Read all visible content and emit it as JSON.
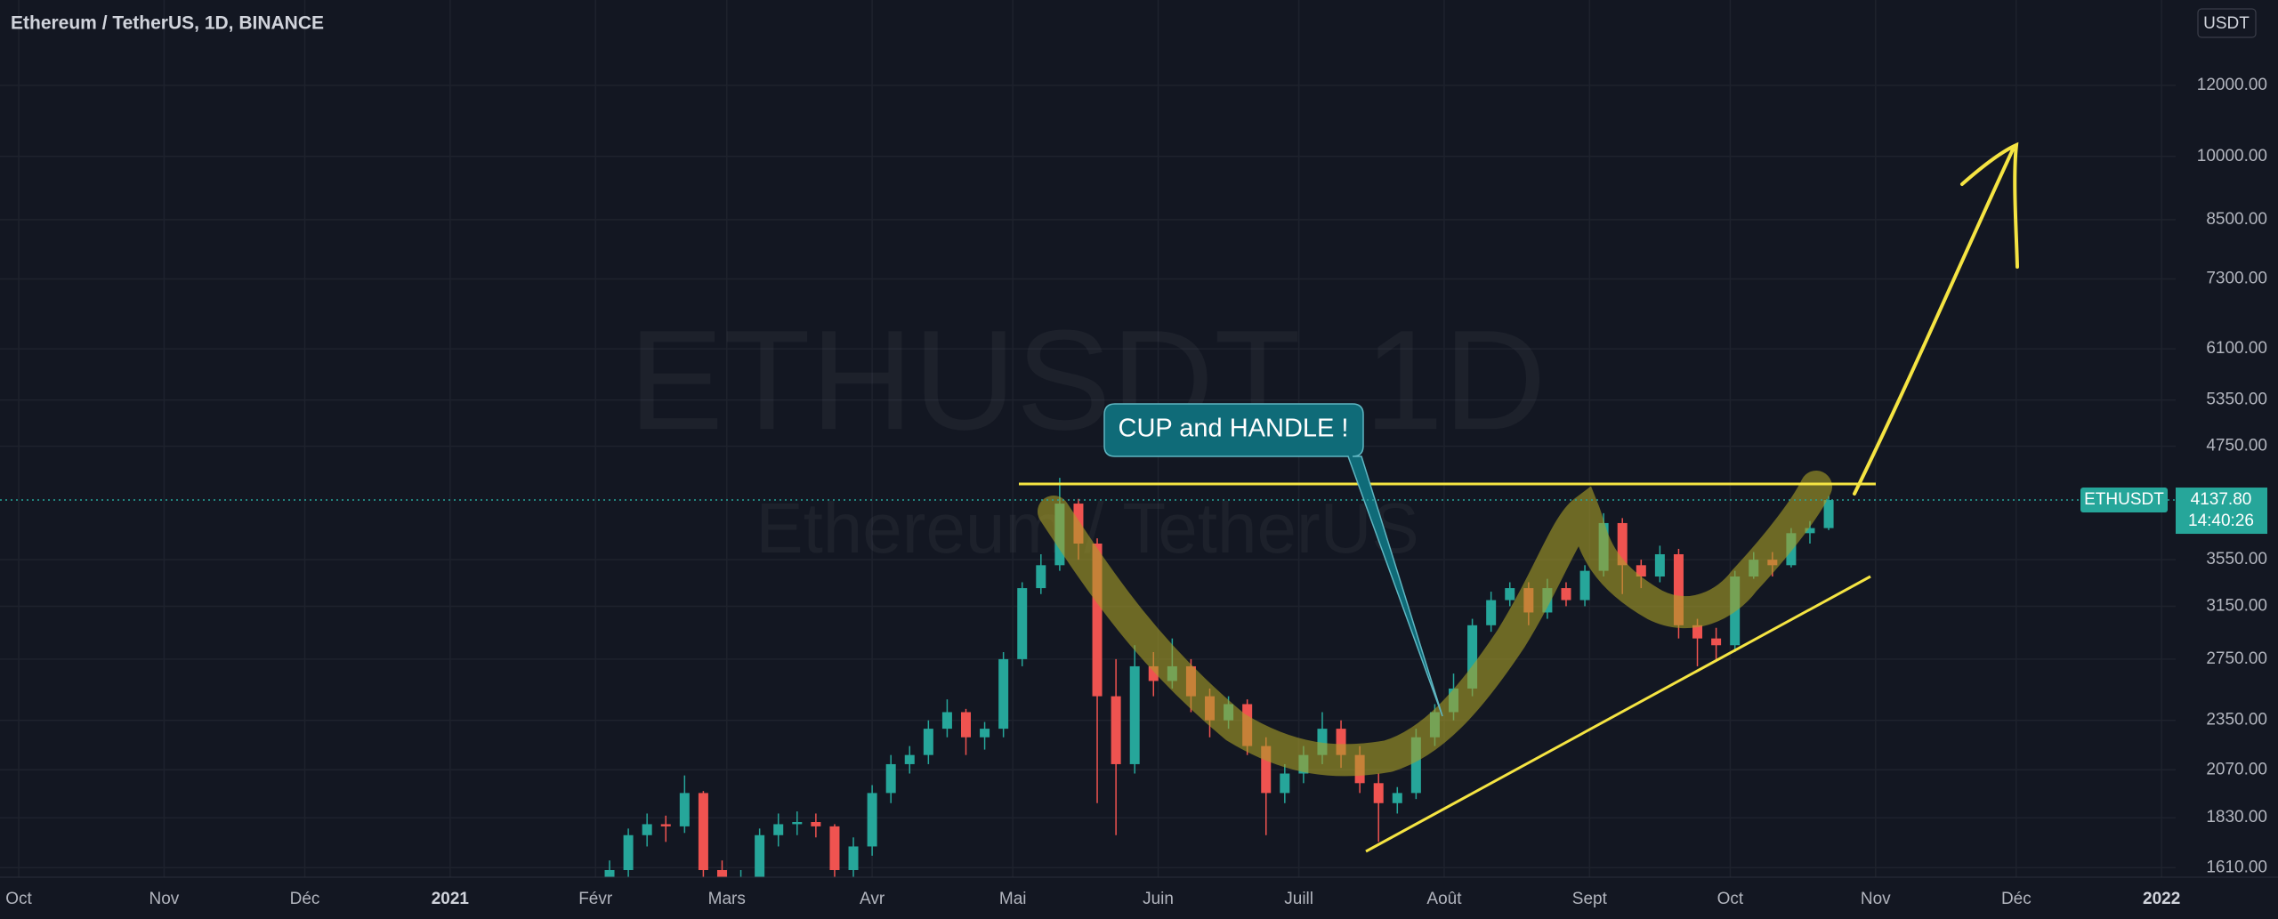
{
  "chart_data": {
    "type": "candlestick",
    "title": "Ethereum / TetherUS, 1D, BINANCE",
    "watermark": "ETHUSDT, 1D",
    "watermark_subtitle": "Ethereum / TetherUS",
    "annotation": "CUP and HANDLE !",
    "currency_button": "USDT",
    "symbol_tag": "ETHUSDT",
    "last_price": {
      "value": 4137.8,
      "label": "4137.80"
    },
    "countdown": "14:40:26",
    "log_scale": true,
    "grid": true,
    "up_color": "#26a69a",
    "down_color": "#ef5350",
    "x": [
      "2021-02-04",
      "2021-02-08",
      "2021-02-12",
      "2021-02-16",
      "2021-02-20",
      "2021-02-24",
      "2021-02-28",
      "2021-03-04",
      "2021-03-08",
      "2021-03-12",
      "2021-03-16",
      "2021-03-20",
      "2021-03-24",
      "2021-03-28",
      "2021-04-01",
      "2021-04-05",
      "2021-04-09",
      "2021-04-13",
      "2021-04-17",
      "2021-04-21",
      "2021-04-25",
      "2021-04-29",
      "2021-05-03",
      "2021-05-07",
      "2021-05-11",
      "2021-05-15",
      "2021-05-19",
      "2021-05-23",
      "2021-05-27",
      "2021-05-31",
      "2021-06-04",
      "2021-06-08",
      "2021-06-12",
      "2021-06-16",
      "2021-06-20",
      "2021-06-24",
      "2021-06-28",
      "2021-07-02",
      "2021-07-06",
      "2021-07-10",
      "2021-07-14",
      "2021-07-18",
      "2021-07-22",
      "2021-07-26",
      "2021-07-30",
      "2021-08-03",
      "2021-08-07",
      "2021-08-11",
      "2021-08-15",
      "2021-08-19",
      "2021-08-23",
      "2021-08-27",
      "2021-08-31",
      "2021-09-04",
      "2021-09-08",
      "2021-09-12",
      "2021-09-16",
      "2021-09-20",
      "2021-09-24",
      "2021-09-28",
      "2021-10-02",
      "2021-10-06",
      "2021-10-10",
      "2021-10-14",
      "2021-10-18",
      "2021-10-22"
    ],
    "open": [
      1550,
      1600,
      1750,
      1800,
      1790,
      1950,
      1600,
      1450,
      1550,
      1750,
      1800,
      1810,
      1790,
      1600,
      1700,
      1950,
      2100,
      2150,
      2300,
      2400,
      2250,
      2300,
      2750,
      3300,
      3500,
      4100,
      3700,
      2500,
      2100,
      2700,
      2600,
      2700,
      2500,
      2350,
      2450,
      2200,
      1950,
      2050,
      2150,
      2300,
      2150,
      2000,
      1900,
      1950,
      2250,
      2400,
      2550,
      3000,
      3200,
      3300,
      3100,
      3300,
      3200,
      3450,
      3900,
      3500,
      3400,
      3600,
      3000,
      2900,
      2850,
      3400,
      3550,
      3500,
      3800,
      3850
    ],
    "high": [
      1640,
      1780,
      1850,
      1840,
      2040,
      1960,
      1640,
      1600,
      1780,
      1850,
      1860,
      1850,
      1800,
      1740,
      1990,
      2150,
      2200,
      2350,
      2480,
      2420,
      2340,
      2800,
      3350,
      3600,
      4380,
      4150,
      3750,
      2750,
      2850,
      2800,
      2900,
      2750,
      2550,
      2500,
      2480,
      2250,
      2100,
      2200,
      2400,
      2350,
      2200,
      2050,
      1980,
      2300,
      2450,
      2650,
      3050,
      3270,
      3350,
      3350,
      3380,
      3350,
      3500,
      4000,
      3950,
      3550,
      3680,
      3650,
      3050,
      2980,
      3450,
      3620,
      3620,
      3850,
      3920,
      4180
    ],
    "low": [
      1500,
      1560,
      1700,
      1720,
      1760,
      1550,
      1380,
      1420,
      1500,
      1700,
      1750,
      1740,
      1540,
      1560,
      1660,
      1900,
      2050,
      2100,
      2250,
      2150,
      2180,
      2250,
      2700,
      3250,
      3450,
      3550,
      1900,
      1750,
      2050,
      2500,
      2550,
      2400,
      2250,
      2300,
      2150,
      1750,
      1900,
      2000,
      2100,
      2080,
      1950,
      1720,
      1850,
      1920,
      2200,
      2350,
      2500,
      2950,
      3150,
      3000,
      3050,
      3150,
      3150,
      3400,
      3250,
      3300,
      3350,
      2900,
      2700,
      2750,
      2800,
      3380,
      3400,
      3480,
      3700,
      3830
    ],
    "close": [
      1600,
      1750,
      1800,
      1790,
      1950,
      1600,
      1450,
      1550,
      1750,
      1800,
      1810,
      1790,
      1600,
      1700,
      1950,
      2100,
      2150,
      2300,
      2400,
      2250,
      2300,
      2750,
      3300,
      3500,
      4100,
      3700,
      2500,
      2100,
      2700,
      2600,
      2700,
      2500,
      2350,
      2450,
      2200,
      1950,
      2050,
      2150,
      2300,
      2150,
      2000,
      1900,
      1950,
      2250,
      2400,
      2550,
      3000,
      3200,
      3300,
      3100,
      3300,
      3200,
      3450,
      3900,
      3500,
      3400,
      3600,
      3000,
      2900,
      2850,
      3400,
      3550,
      3500,
      3800,
      3850,
      4137.8
    ],
    "xlim": [
      "2020-09-27",
      "2022-01-04"
    ],
    "xticks": [
      {
        "value": "2020-10-01",
        "label": "Oct"
      },
      {
        "value": "2020-11-01",
        "label": "Nov"
      },
      {
        "value": "2020-12-01",
        "label": "Déc"
      },
      {
        "value": "2021-01-01",
        "label": "2021"
      },
      {
        "value": "2021-02-01",
        "label": "Févr"
      },
      {
        "value": "2021-03-01",
        "label": "Mars"
      },
      {
        "value": "2021-04-01",
        "label": "Avr"
      },
      {
        "value": "2021-05-01",
        "label": "Mai"
      },
      {
        "value": "2021-06-01",
        "label": "Juin"
      },
      {
        "value": "2021-07-01",
        "label": "Juill"
      },
      {
        "value": "2021-08-01",
        "label": "Août"
      },
      {
        "value": "2021-09-01",
        "label": "Sept"
      },
      {
        "value": "2021-10-01",
        "label": "Oct"
      },
      {
        "value": "2021-11-01",
        "label": "Nov"
      },
      {
        "value": "2021-12-01",
        "label": "Déc"
      },
      {
        "value": "2022-01-01",
        "label": "2022"
      }
    ],
    "ylim": [
      1571,
      14940
    ],
    "yticks": [
      {
        "value": 1610,
        "label": "1610.00"
      },
      {
        "value": 1830,
        "label": "1830.00"
      },
      {
        "value": 2070,
        "label": "2070.00"
      },
      {
        "value": 2350,
        "label": "2350.00"
      },
      {
        "value": 2750,
        "label": "2750.00"
      },
      {
        "value": 3150,
        "label": "3150.00"
      },
      {
        "value": 3550,
        "label": "3550.00"
      },
      {
        "value": 4750,
        "label": "4750.00"
      },
      {
        "value": 5350,
        "label": "5350.00"
      },
      {
        "value": 6100,
        "label": "6100.00"
      },
      {
        "value": 7300,
        "label": "7300.00"
      },
      {
        "value": 8500,
        "label": "8500.00"
      },
      {
        "value": 10000,
        "label": "10000.00"
      },
      {
        "value": 12000,
        "label": "12000.00"
      }
    ]
  }
}
